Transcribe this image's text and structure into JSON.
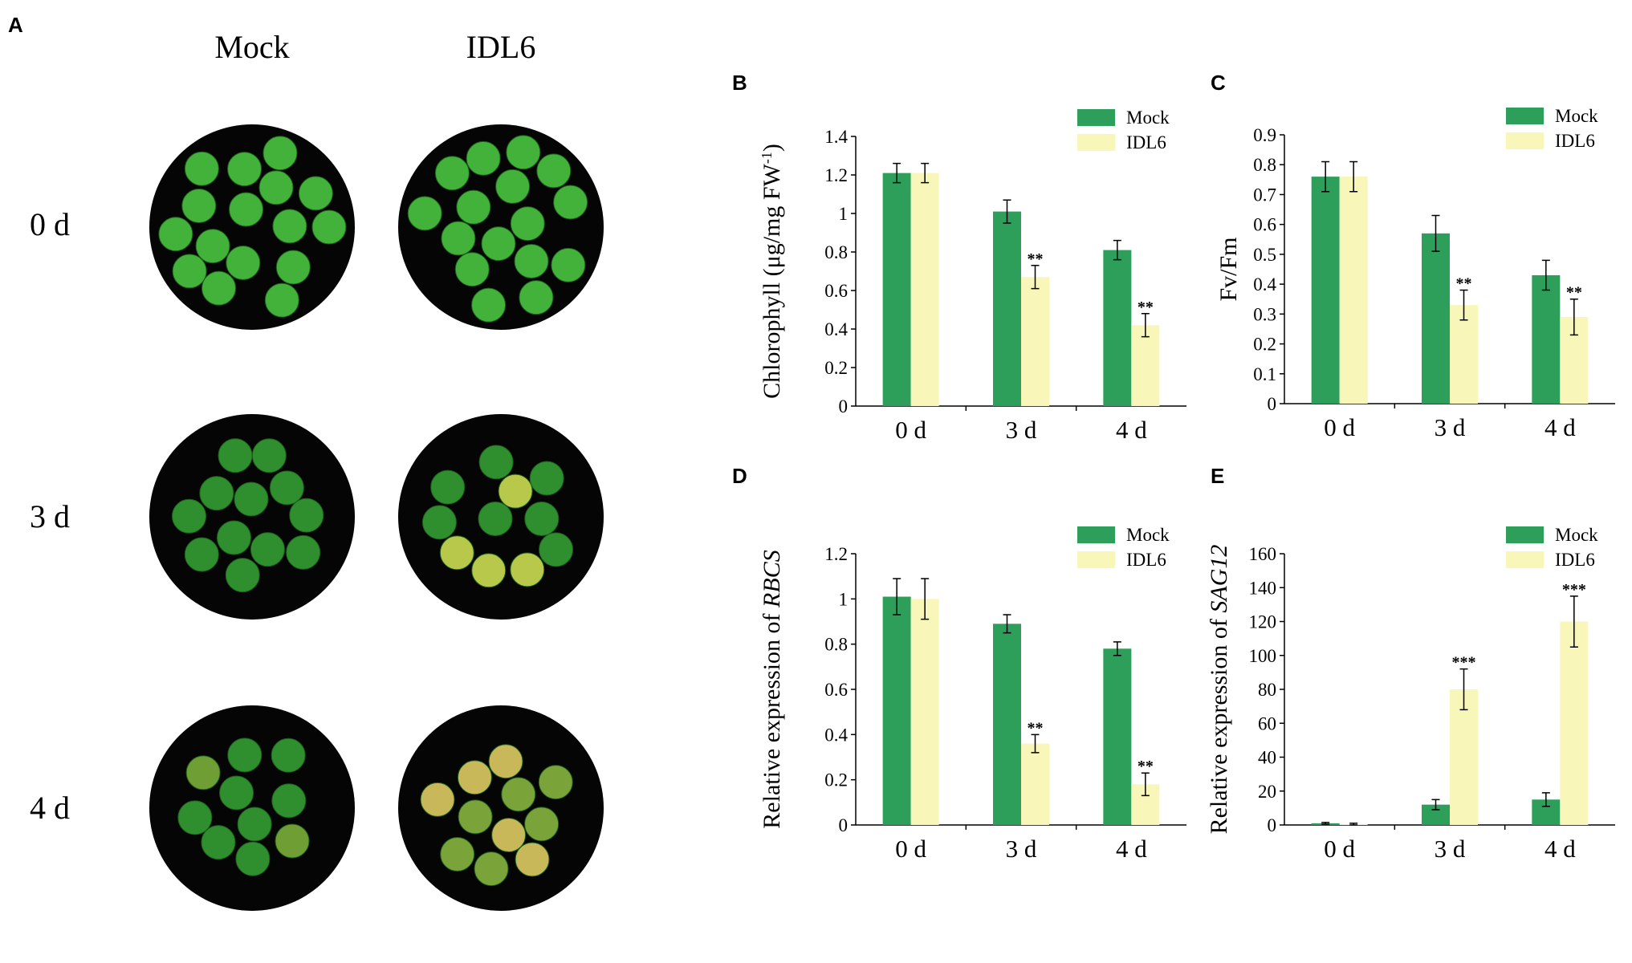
{
  "panel_a": {
    "label": "A",
    "columns": [
      "Mock",
      "IDL6"
    ],
    "rows": [
      "0 d",
      "3 d",
      "4 d"
    ]
  },
  "chart_data": [
    {
      "type": "bar",
      "panel_label": "B",
      "ylabel": [
        "Chlorophyll (μg/mg FW",
        "-1",
        ")"
      ],
      "ylabel_style": [
        "normal",
        "super",
        "normal"
      ],
      "categories": [
        "0 d",
        "3 d",
        "4 d"
      ],
      "ylim": [
        0,
        1.4
      ],
      "yticks": [
        0,
        0.2,
        0.4,
        0.6,
        0.8,
        1,
        1.2,
        1.4
      ],
      "series": [
        {
          "name": "Mock",
          "color": "#2e9e5b",
          "values": [
            1.21,
            1.01,
            0.81
          ],
          "errors": [
            0.05,
            0.06,
            0.05
          ]
        },
        {
          "name": "IDL6",
          "color": "#f8f6b8",
          "values": [
            1.21,
            0.67,
            0.42
          ],
          "errors": [
            0.05,
            0.06,
            0.06
          ],
          "significance": [
            null,
            "**",
            "**"
          ]
        }
      ]
    },
    {
      "type": "bar",
      "panel_label": "C",
      "ylabel": [
        "Fv/Fm"
      ],
      "ylabel_style": [
        "normal"
      ],
      "categories": [
        "0 d",
        "3 d",
        "4 d"
      ],
      "ylim": [
        0,
        0.9
      ],
      "yticks": [
        0,
        0.1,
        0.2,
        0.3,
        0.4,
        0.5,
        0.6,
        0.7,
        0.8,
        0.9
      ],
      "series": [
        {
          "name": "Mock",
          "color": "#2e9e5b",
          "values": [
            0.76,
            0.57,
            0.43
          ],
          "errors": [
            0.05,
            0.06,
            0.05
          ]
        },
        {
          "name": "IDL6",
          "color": "#f8f6b8",
          "values": [
            0.76,
            0.33,
            0.29
          ],
          "errors": [
            0.05,
            0.05,
            0.06
          ],
          "significance": [
            null,
            "**",
            "**"
          ]
        }
      ]
    },
    {
      "type": "bar",
      "panel_label": "D",
      "ylabel": [
        "Relative expression of ",
        "RBCS"
      ],
      "ylabel_style": [
        "normal",
        "italic"
      ],
      "categories": [
        "0 d",
        "3 d",
        "4 d"
      ],
      "ylim": [
        0,
        1.2
      ],
      "yticks": [
        0,
        0.2,
        0.4,
        0.6,
        0.8,
        1,
        1.2
      ],
      "series": [
        {
          "name": "Mock",
          "color": "#2e9e5b",
          "values": [
            1.01,
            0.89,
            0.78
          ],
          "errors": [
            0.08,
            0.04,
            0.03
          ]
        },
        {
          "name": "IDL6",
          "color": "#f8f6b8",
          "values": [
            1.0,
            0.36,
            0.18
          ],
          "errors": [
            0.09,
            0.04,
            0.05
          ],
          "significance": [
            null,
            "**",
            "**"
          ]
        }
      ]
    },
    {
      "type": "bar",
      "panel_label": "E",
      "ylabel": [
        "Relative expression of ",
        "SAG12"
      ],
      "ylabel_style": [
        "normal",
        "italic"
      ],
      "categories": [
        "0 d",
        "3 d",
        "4 d"
      ],
      "ylim": [
        0,
        160
      ],
      "yticks": [
        0,
        20,
        40,
        60,
        80,
        100,
        120,
        140,
        160
      ],
      "series": [
        {
          "name": "Mock",
          "color": "#2e9e5b",
          "values": [
            1,
            12,
            15
          ],
          "errors": [
            0.5,
            3,
            4
          ]
        },
        {
          "name": "IDL6",
          "color": "#f8f6b8",
          "values": [
            0.5,
            80,
            120
          ],
          "errors": [
            0.5,
            12,
            15
          ],
          "significance": [
            null,
            "***",
            "***"
          ]
        }
      ]
    }
  ]
}
